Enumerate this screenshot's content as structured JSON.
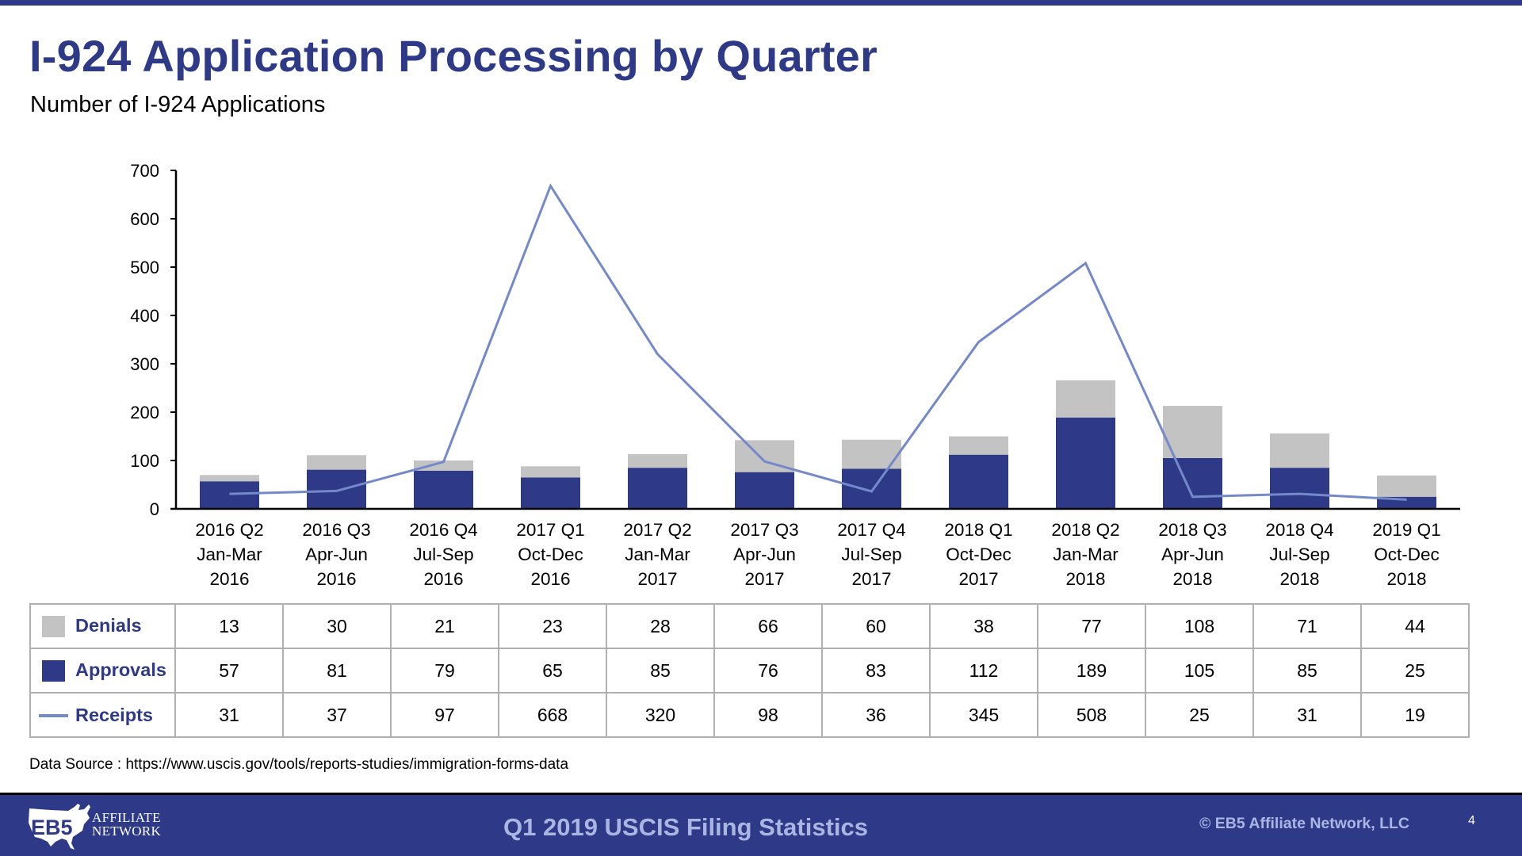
{
  "header": {
    "title": "I-924 Application Processing by Quarter",
    "subtitle": "Number of I-924 Applications"
  },
  "colors": {
    "brand_navy": "#2e3a87",
    "approvals": "#2e3a87",
    "denials": "#c3c3c3",
    "receipts": "#7389c9",
    "footer_text": "#aab6e2"
  },
  "chart_data": {
    "type": "bar",
    "stacked": true,
    "title": "I-924 Application Processing by Quarter",
    "subtitle": "Number of I-924 Applications",
    "xlabel": "",
    "ylabel": "",
    "ylim": [
      0,
      700
    ],
    "yticks": [
      0,
      100,
      200,
      300,
      400,
      500,
      600,
      700
    ],
    "grid": false,
    "legend": "table-below",
    "categories": [
      [
        "2016 Q2",
        "Jan-Mar",
        "2016"
      ],
      [
        "2016 Q3",
        "Apr-Jun",
        "2016"
      ],
      [
        "2016 Q4",
        "Jul-Sep",
        "2016"
      ],
      [
        "2017 Q1",
        "Oct-Dec",
        "2016"
      ],
      [
        "2017 Q2",
        "Jan-Mar",
        "2017"
      ],
      [
        "2017 Q3",
        "Apr-Jun",
        "2017"
      ],
      [
        "2017 Q4",
        "Jul-Sep",
        "2017"
      ],
      [
        "2018 Q1",
        "Oct-Dec",
        "2017"
      ],
      [
        "2018 Q2",
        "Jan-Mar",
        "2018"
      ],
      [
        "2018 Q3",
        "Apr-Jun",
        "2018"
      ],
      [
        "2018 Q4",
        "Jul-Sep",
        "2018"
      ],
      [
        "2019 Q1",
        "Oct-Dec",
        "2018"
      ]
    ],
    "series": [
      {
        "name": "Denials",
        "type": "bar",
        "values": [
          13,
          30,
          21,
          23,
          28,
          66,
          60,
          38,
          77,
          108,
          71,
          44
        ]
      },
      {
        "name": "Approvals",
        "type": "bar",
        "values": [
          57,
          81,
          79,
          65,
          85,
          76,
          83,
          112,
          189,
          105,
          85,
          25
        ]
      },
      {
        "name": "Receipts",
        "type": "line",
        "values": [
          31,
          37,
          97,
          668,
          320,
          98,
          36,
          345,
          508,
          25,
          31,
          19
        ]
      }
    ]
  },
  "table": {
    "rows": [
      {
        "label": "Denials",
        "legend": "swatch",
        "values": [
          "13",
          "30",
          "21",
          "23",
          "28",
          "66",
          "60",
          "38",
          "77",
          "108",
          "71",
          "44"
        ]
      },
      {
        "label": "Approvals",
        "legend": "swatch",
        "values": [
          "57",
          "81",
          "79",
          "65",
          "85",
          "76",
          "83",
          "112",
          "189",
          "105",
          "85",
          "25"
        ]
      },
      {
        "label": "Receipts",
        "legend": "line",
        "values": [
          "31",
          "37",
          "97",
          "668",
          "320",
          "98",
          "36",
          "345",
          "508",
          "25",
          "31",
          "19"
        ]
      }
    ]
  },
  "source": "Data Source : https://www.uscis.gov/tools/reports-studies/immigration-forms-data",
  "footer": {
    "logo_mark": "EB5",
    "logo_line1": "AFFILIATE",
    "logo_line2": "NETWORK",
    "title": "Q1 2019 USCIS Filing Statistics",
    "copyright": "© EB5 Affiliate Network, LLC",
    "page_number": "4"
  }
}
